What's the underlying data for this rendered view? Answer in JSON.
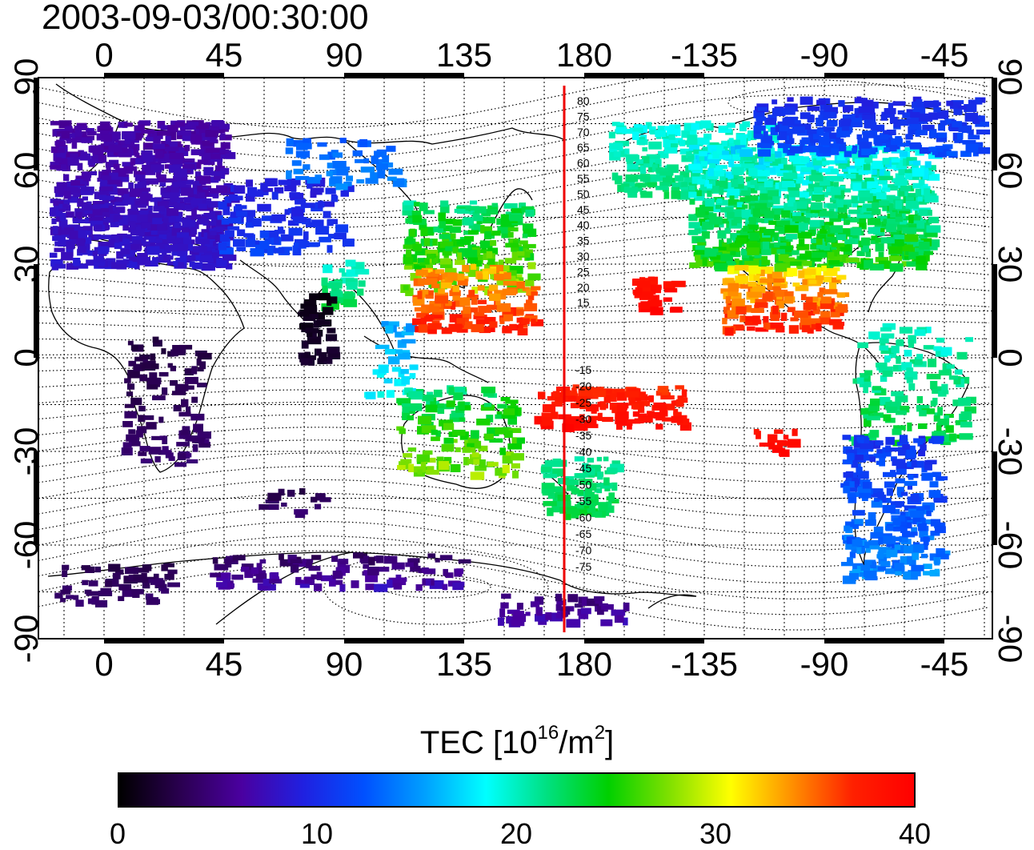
{
  "title": "2003-09-03/00:30:00",
  "map": {
    "type": "world TEC map (equirectangular)",
    "lon_tick_labels": [
      "0",
      "45",
      "90",
      "135",
      "180",
      "-135",
      "-90",
      "-45"
    ],
    "lat_tick_labels": [
      "90",
      "60",
      "30",
      "0",
      "-30",
      "-60",
      "-90"
    ],
    "meridian_marker_color": "#ee0000",
    "contour_labels_north": [
      "80",
      "75",
      "70",
      "65",
      "60",
      "55",
      "50",
      "45",
      "40",
      "35",
      "30",
      "25",
      "20",
      "15"
    ],
    "contour_labels_south": [
      "-15",
      "-20",
      "-25",
      "-30",
      "-35",
      "-40",
      "-45",
      "-50",
      "-55",
      "-60",
      "-65",
      "-70",
      "-75"
    ]
  },
  "colorbar": {
    "title_main": "TEC  [10",
    "title_exp1": "16",
    "title_mid": "/m",
    "title_exp2": "2",
    "title_end": "]",
    "min": 0,
    "max": 40,
    "tick_labels": [
      "0",
      "10",
      "20",
      "30",
      "40"
    ],
    "colors": [
      "#000000",
      "#2a0050",
      "#4a00a0",
      "#2020e0",
      "#0050ff",
      "#00a0ff",
      "#00ffff",
      "#00e080",
      "#00d000",
      "#80e000",
      "#ffff00",
      "#ff9000",
      "#ff2000",
      "#ff0000"
    ]
  }
}
